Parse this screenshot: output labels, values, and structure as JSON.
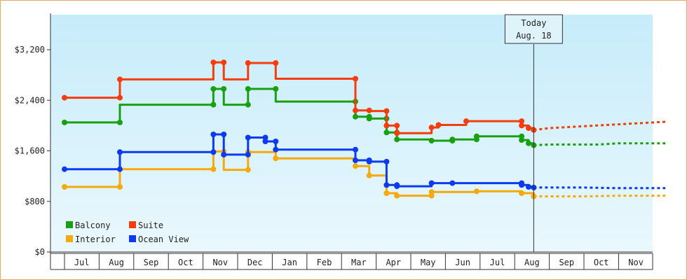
{
  "chart_data": {
    "type": "line",
    "title": "",
    "xlabel": "",
    "ylabel": "",
    "ylim": [
      0,
      3200
    ],
    "yticks": [
      0,
      800,
      1600,
      2400,
      3200
    ],
    "ytick_labels": [
      "$0",
      "$800",
      "$1,600",
      "$2,400",
      "$3,200"
    ],
    "x_months": [
      "Jul",
      "Aug",
      "Sep",
      "Oct",
      "Nov",
      "Dec",
      "Jan",
      "Feb",
      "Mar",
      "Apr",
      "May",
      "Jun",
      "Jul",
      "Aug",
      "Sep",
      "Oct",
      "Nov"
    ],
    "grid": false,
    "legend_position": "bottom-left",
    "today": {
      "label_line1": "Today",
      "label_line2": "Aug. 18",
      "x": 13.55
    },
    "colors": {
      "background_top": "#c6ecfa",
      "background_bottom": "#eaf8fd",
      "Balcony": "#17a00f",
      "Suite": "#f53c0c",
      "Interior": "#f6a90c",
      "Ocean View": "#0b3af2"
    },
    "series": [
      {
        "name": "Balcony",
        "step_points": [
          [
            0.0,
            2050
          ],
          [
            1.6,
            2050
          ],
          [
            1.6,
            2330
          ],
          [
            4.3,
            2330
          ],
          [
            4.3,
            2580
          ],
          [
            4.6,
            2580
          ],
          [
            4.6,
            2330
          ],
          [
            5.3,
            2330
          ],
          [
            5.3,
            2580
          ],
          [
            6.1,
            2580
          ],
          [
            6.1,
            2380
          ],
          [
            8.4,
            2380
          ],
          [
            8.4,
            2140
          ],
          [
            8.8,
            2140
          ],
          [
            8.8,
            2110
          ],
          [
            9.3,
            2110
          ],
          [
            9.3,
            1890
          ],
          [
            9.6,
            1890
          ],
          [
            9.6,
            1780
          ],
          [
            10.6,
            1780
          ],
          [
            10.6,
            1760
          ],
          [
            11.2,
            1760
          ],
          [
            11.2,
            1780
          ],
          [
            11.9,
            1780
          ],
          [
            11.9,
            1830
          ],
          [
            13.2,
            1830
          ],
          [
            13.2,
            1770
          ],
          [
            13.4,
            1770
          ],
          [
            13.4,
            1720
          ],
          [
            13.55,
            1720
          ],
          [
            13.55,
            1690
          ]
        ],
        "markers": [
          [
            0.0,
            2050
          ],
          [
            1.6,
            2050
          ],
          [
            4.3,
            2330
          ],
          [
            4.3,
            2580
          ],
          [
            4.6,
            2580
          ],
          [
            5.3,
            2330
          ],
          [
            5.3,
            2580
          ],
          [
            6.1,
            2580
          ],
          [
            8.4,
            2380
          ],
          [
            8.4,
            2140
          ],
          [
            8.8,
            2140
          ],
          [
            8.8,
            2110
          ],
          [
            9.3,
            2110
          ],
          [
            9.3,
            1890
          ],
          [
            9.6,
            1890
          ],
          [
            9.6,
            1780
          ],
          [
            10.6,
            1760
          ],
          [
            11.2,
            1760
          ],
          [
            11.2,
            1780
          ],
          [
            11.9,
            1780
          ],
          [
            11.9,
            1830
          ],
          [
            13.2,
            1830
          ],
          [
            13.2,
            1770
          ],
          [
            13.4,
            1720
          ],
          [
            13.55,
            1690
          ]
        ],
        "forecast": [
          [
            13.55,
            1690
          ],
          [
            14.0,
            1700
          ],
          [
            15.4,
            1700
          ],
          [
            16.0,
            1720
          ],
          [
            17.35,
            1720
          ]
        ]
      },
      {
        "name": "Suite",
        "step_points": [
          [
            0.0,
            2440
          ],
          [
            1.6,
            2440
          ],
          [
            1.6,
            2730
          ],
          [
            4.3,
            2730
          ],
          [
            4.3,
            3000
          ],
          [
            4.6,
            3000
          ],
          [
            4.6,
            2730
          ],
          [
            5.3,
            2730
          ],
          [
            5.3,
            2990
          ],
          [
            6.1,
            2990
          ],
          [
            6.1,
            2740
          ],
          [
            8.4,
            2740
          ],
          [
            8.4,
            2240
          ],
          [
            8.8,
            2240
          ],
          [
            8.8,
            2230
          ],
          [
            9.3,
            2230
          ],
          [
            9.3,
            2000
          ],
          [
            9.6,
            2000
          ],
          [
            9.6,
            1880
          ],
          [
            10.6,
            1880
          ],
          [
            10.6,
            1970
          ],
          [
            10.8,
            1970
          ],
          [
            10.8,
            2010
          ],
          [
            11.6,
            2010
          ],
          [
            11.6,
            2070
          ],
          [
            13.2,
            2070
          ],
          [
            13.2,
            2000
          ],
          [
            13.4,
            2000
          ],
          [
            13.4,
            1960
          ],
          [
            13.55,
            1960
          ],
          [
            13.55,
            1930
          ]
        ],
        "markers": [
          [
            0.0,
            2440
          ],
          [
            1.6,
            2440
          ],
          [
            1.6,
            2730
          ],
          [
            4.3,
            3000
          ],
          [
            4.6,
            3000
          ],
          [
            5.3,
            2990
          ],
          [
            6.1,
            2990
          ],
          [
            8.4,
            2740
          ],
          [
            8.4,
            2240
          ],
          [
            8.8,
            2240
          ],
          [
            9.3,
            2230
          ],
          [
            9.3,
            2000
          ],
          [
            9.6,
            2000
          ],
          [
            9.6,
            1880
          ],
          [
            10.6,
            1970
          ],
          [
            10.8,
            2010
          ],
          [
            11.6,
            2070
          ],
          [
            13.2,
            2070
          ],
          [
            13.2,
            2000
          ],
          [
            13.4,
            1960
          ],
          [
            13.55,
            1930
          ]
        ],
        "forecast": [
          [
            13.55,
            1930
          ],
          [
            14.0,
            1960
          ],
          [
            15.0,
            1990
          ],
          [
            16.0,
            2020
          ],
          [
            17.35,
            2060
          ]
        ]
      },
      {
        "name": "Interior",
        "step_points": [
          [
            0.0,
            1030
          ],
          [
            1.6,
            1030
          ],
          [
            1.6,
            1310
          ],
          [
            4.3,
            1310
          ],
          [
            4.3,
            1590
          ],
          [
            4.6,
            1590
          ],
          [
            4.6,
            1300
          ],
          [
            5.3,
            1300
          ],
          [
            5.3,
            1580
          ],
          [
            6.1,
            1580
          ],
          [
            6.1,
            1480
          ],
          [
            8.4,
            1480
          ],
          [
            8.4,
            1360
          ],
          [
            8.8,
            1360
          ],
          [
            8.8,
            1210
          ],
          [
            9.3,
            1210
          ],
          [
            9.3,
            930
          ],
          [
            9.6,
            930
          ],
          [
            9.6,
            890
          ],
          [
            10.6,
            890
          ],
          [
            10.6,
            950
          ],
          [
            11.9,
            950
          ],
          [
            11.9,
            960
          ],
          [
            13.2,
            960
          ],
          [
            13.2,
            930
          ],
          [
            13.55,
            930
          ],
          [
            13.55,
            880
          ]
        ],
        "markers": [
          [
            0.0,
            1030
          ],
          [
            1.6,
            1030
          ],
          [
            4.3,
            1310
          ],
          [
            4.6,
            1590
          ],
          [
            5.3,
            1300
          ],
          [
            5.3,
            1580
          ],
          [
            6.1,
            1480
          ],
          [
            8.4,
            1360
          ],
          [
            8.8,
            1210
          ],
          [
            9.3,
            930
          ],
          [
            9.6,
            890
          ],
          [
            10.6,
            890
          ],
          [
            10.6,
            950
          ],
          [
            11.9,
            960
          ],
          [
            13.2,
            930
          ],
          [
            13.55,
            880
          ]
        ],
        "forecast": [
          [
            13.55,
            880
          ],
          [
            15.0,
            880
          ],
          [
            16.0,
            890
          ],
          [
            17.35,
            890
          ]
        ]
      },
      {
        "name": "Ocean View",
        "step_points": [
          [
            0.0,
            1310
          ],
          [
            1.6,
            1310
          ],
          [
            1.6,
            1580
          ],
          [
            4.3,
            1580
          ],
          [
            4.3,
            1860
          ],
          [
            4.6,
            1860
          ],
          [
            4.6,
            1540
          ],
          [
            5.3,
            1540
          ],
          [
            5.3,
            1810
          ],
          [
            5.8,
            1810
          ],
          [
            5.8,
            1750
          ],
          [
            6.1,
            1750
          ],
          [
            6.1,
            1620
          ],
          [
            8.4,
            1620
          ],
          [
            8.4,
            1450
          ],
          [
            8.8,
            1450
          ],
          [
            8.8,
            1430
          ],
          [
            9.3,
            1430
          ],
          [
            9.3,
            1060
          ],
          [
            9.6,
            1060
          ],
          [
            9.6,
            1040
          ],
          [
            10.6,
            1040
          ],
          [
            10.6,
            1090
          ],
          [
            13.2,
            1090
          ],
          [
            13.2,
            1060
          ],
          [
            13.4,
            1060
          ],
          [
            13.4,
            1030
          ],
          [
            13.55,
            1030
          ],
          [
            13.55,
            1020
          ]
        ],
        "markers": [
          [
            0.0,
            1310
          ],
          [
            1.6,
            1310
          ],
          [
            1.6,
            1580
          ],
          [
            4.3,
            1580
          ],
          [
            4.3,
            1860
          ],
          [
            4.6,
            1860
          ],
          [
            4.6,
            1540
          ],
          [
            5.3,
            1540
          ],
          [
            5.3,
            1810
          ],
          [
            5.8,
            1810
          ],
          [
            5.8,
            1750
          ],
          [
            6.1,
            1750
          ],
          [
            6.1,
            1620
          ],
          [
            8.4,
            1620
          ],
          [
            8.4,
            1450
          ],
          [
            8.8,
            1450
          ],
          [
            8.8,
            1430
          ],
          [
            9.3,
            1430
          ],
          [
            9.3,
            1060
          ],
          [
            9.6,
            1060
          ],
          [
            9.6,
            1040
          ],
          [
            10.6,
            1090
          ],
          [
            11.2,
            1090
          ],
          [
            13.2,
            1090
          ],
          [
            13.2,
            1060
          ],
          [
            13.4,
            1030
          ],
          [
            13.55,
            1020
          ]
        ],
        "forecast": [
          [
            13.55,
            1020
          ],
          [
            15.0,
            1020
          ],
          [
            16.0,
            1010
          ],
          [
            17.35,
            1010
          ]
        ]
      }
    ],
    "legend": [
      {
        "name": "Balcony",
        "color": "#17a00f"
      },
      {
        "name": "Suite",
        "color": "#f53c0c"
      },
      {
        "name": "Interior",
        "color": "#f6a90c"
      },
      {
        "name": "Ocean View",
        "color": "#0b3af2"
      }
    ]
  }
}
